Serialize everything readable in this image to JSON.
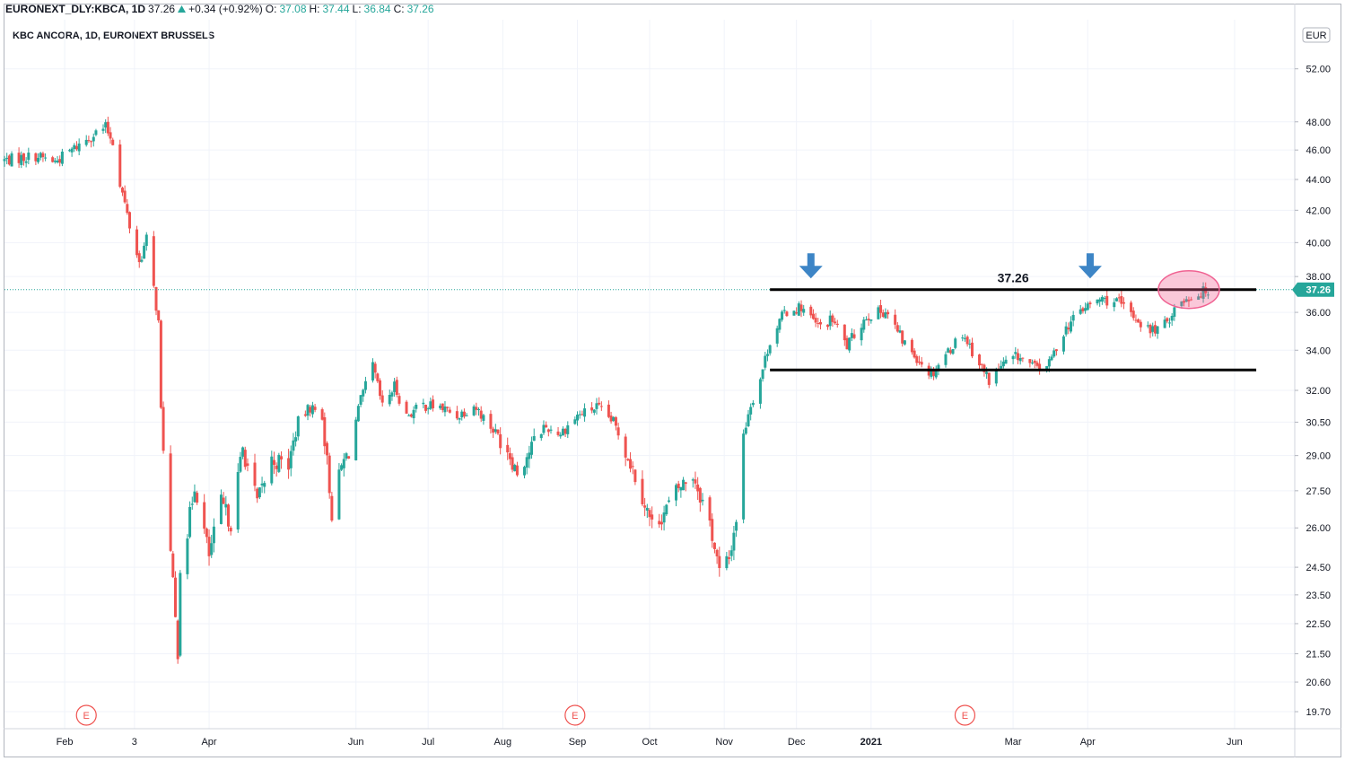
{
  "header": {
    "symbol": "EURONEXT_DLY:KBCA, 1D",
    "last": "37.26",
    "change": "+0.34 (+0.92%)",
    "o_label": "O:",
    "o_value": "37.08",
    "h_label": "H:",
    "h_value": "37.44",
    "l_label": "L:",
    "l_value": "36.84",
    "c_label": "C:",
    "c_value": "37.26",
    "arrow_icon": "triangle-up-icon"
  },
  "chart_title": "KBC ANCORA, 1D, EURONEXT BRUSSELS",
  "currency_badge": "EUR",
  "current_price_label": "37.26",
  "annotation_label": "37.26",
  "event_marker_label": "E",
  "colors": {
    "up": "#26a69a",
    "down": "#ef5350",
    "price_badge": "#26a69a",
    "annotation_arrow": "#3d85c6",
    "highlight_ellipse": "#f06292",
    "dotted_line": "#26a69a"
  },
  "chart_data": {
    "type": "candlestick",
    "y_scale": "log",
    "ylim": [
      19.2,
      56.0
    ],
    "y_ticks": [
      52.0,
      48.0,
      46.0,
      44.0,
      42.0,
      40.0,
      38.0,
      36.0,
      34.0,
      32.0,
      30.5,
      29.0,
      27.5,
      26.0,
      24.5,
      23.5,
      22.5,
      21.5,
      20.6,
      19.7
    ],
    "y_tick_labels": [
      "52.00",
      "48.00",
      "46.00",
      "44.00",
      "42.00",
      "40.00",
      "38.00",
      "36.00",
      "34.00",
      "32.00",
      "30.50",
      "29.00",
      "27.50",
      "26.00",
      "24.50",
      "23.50",
      "22.50",
      "21.50",
      "20.60",
      "19.70"
    ],
    "x_ticks": [
      {
        "label": "Feb",
        "date": "2020-02-01",
        "bold": false
      },
      {
        "label": "3",
        "date": "2020-03-01",
        "bold": false
      },
      {
        "label": "Apr",
        "date": "2020-04-01",
        "bold": false
      },
      {
        "label": "Jun",
        "date": "2020-06-01",
        "bold": false
      },
      {
        "label": "Jul",
        "date": "2020-07-01",
        "bold": false
      },
      {
        "label": "Aug",
        "date": "2020-08-01",
        "bold": false
      },
      {
        "label": "Sep",
        "date": "2020-09-01",
        "bold": false
      },
      {
        "label": "Oct",
        "date": "2020-10-01",
        "bold": false
      },
      {
        "label": "Nov",
        "date": "2020-11-01",
        "bold": false
      },
      {
        "label": "Dec",
        "date": "2020-12-01",
        "bold": false
      },
      {
        "label": "2021",
        "date": "2021-01-01",
        "bold": true
      },
      {
        "label": "Mar",
        "date": "2021-03-01",
        "bold": false
      },
      {
        "label": "Apr",
        "date": "2021-04-01",
        "bold": false
      },
      {
        "label": "Jun",
        "date": "2021-06-01",
        "bold": false
      }
    ],
    "x_start": "2020-01-07",
    "x_end": "2021-06-26",
    "path_points": [
      [
        "2020-01-07",
        45.3
      ],
      [
        "2020-01-20",
        45.6
      ],
      [
        "2020-01-28",
        45.2
      ],
      [
        "2020-02-04",
        46.0
      ],
      [
        "2020-02-12",
        47.0
      ],
      [
        "2020-02-18",
        47.6
      ],
      [
        "2020-02-21",
        46.6
      ],
      [
        "2020-02-24",
        43.8
      ],
      [
        "2020-02-28",
        41.0
      ],
      [
        "2020-03-03",
        38.8
      ],
      [
        "2020-03-06",
        40.2
      ],
      [
        "2020-03-09",
        37.3
      ],
      [
        "2020-03-11",
        35.4
      ],
      [
        "2020-03-12",
        31.0
      ],
      [
        "2020-03-13",
        29.5
      ],
      [
        "2020-03-16",
        25.0
      ],
      [
        "2020-03-18",
        22.6
      ],
      [
        "2020-03-19",
        21.6
      ],
      [
        "2020-03-20",
        24.6
      ],
      [
        "2020-03-23",
        25.8
      ],
      [
        "2020-03-26",
        27.8
      ],
      [
        "2020-04-01",
        24.9
      ],
      [
        "2020-04-06",
        27.0
      ],
      [
        "2020-04-10",
        26.2
      ],
      [
        "2020-04-15",
        29.3
      ],
      [
        "2020-04-21",
        27.0
      ],
      [
        "2020-04-27",
        28.8
      ],
      [
        "2020-05-04",
        28.6
      ],
      [
        "2020-05-08",
        30.5
      ],
      [
        "2020-05-13",
        31.2
      ],
      [
        "2020-05-18",
        30.8
      ],
      [
        "2020-05-22",
        26.6
      ],
      [
        "2020-05-26",
        28.5
      ],
      [
        "2020-05-29",
        29.2
      ],
      [
        "2020-06-03",
        31.5
      ],
      [
        "2020-06-08",
        33.2
      ],
      [
        "2020-06-12",
        31.2
      ],
      [
        "2020-06-17",
        32.2
      ],
      [
        "2020-06-22",
        30.8
      ],
      [
        "2020-06-29",
        31.3
      ],
      [
        "2020-07-06",
        31.2
      ],
      [
        "2020-07-13",
        30.8
      ],
      [
        "2020-07-20",
        31.3
      ],
      [
        "2020-07-27",
        30.3
      ],
      [
        "2020-08-03",
        29.3
      ],
      [
        "2020-08-07",
        28.3
      ],
      [
        "2020-08-12",
        29.2
      ],
      [
        "2020-08-18",
        30.3
      ],
      [
        "2020-08-25",
        30.0
      ],
      [
        "2020-09-01",
        30.8
      ],
      [
        "2020-09-09",
        31.2
      ],
      [
        "2020-09-16",
        30.5
      ],
      [
        "2020-09-22",
        29.0
      ],
      [
        "2020-09-28",
        27.3
      ],
      [
        "2020-10-02",
        26.1
      ],
      [
        "2020-10-07",
        26.6
      ],
      [
        "2020-10-13",
        27.6
      ],
      [
        "2020-10-19",
        28.2
      ],
      [
        "2020-10-26",
        26.2
      ],
      [
        "2020-10-30",
        24.3
      ],
      [
        "2020-11-03",
        24.8
      ],
      [
        "2020-11-06",
        26.4
      ],
      [
        "2020-11-09",
        29.8
      ],
      [
        "2020-11-11",
        31.0
      ],
      [
        "2020-11-16",
        32.6
      ],
      [
        "2020-11-20",
        34.5
      ],
      [
        "2020-11-26",
        36.0
      ],
      [
        "2020-12-03",
        36.3
      ],
      [
        "2020-12-10",
        35.2
      ],
      [
        "2020-12-16",
        35.6
      ],
      [
        "2020-12-22",
        34.2
      ],
      [
        "2020-12-30",
        35.8
      ],
      [
        "2021-01-07",
        36.1
      ],
      [
        "2021-01-14",
        34.5
      ],
      [
        "2021-01-21",
        33.5
      ],
      [
        "2021-01-26",
        32.8
      ],
      [
        "2021-02-01",
        33.8
      ],
      [
        "2021-02-08",
        34.9
      ],
      [
        "2021-02-15",
        33.3
      ],
      [
        "2021-02-19",
        32.5
      ],
      [
        "2021-02-24",
        33.2
      ],
      [
        "2021-03-03",
        33.7
      ],
      [
        "2021-03-10",
        33.1
      ],
      [
        "2021-03-16",
        33.3
      ],
      [
        "2021-03-22",
        35.0
      ],
      [
        "2021-03-29",
        36.1
      ],
      [
        "2021-04-06",
        36.7
      ],
      [
        "2021-04-13",
        36.6
      ],
      [
        "2021-04-20",
        35.8
      ],
      [
        "2021-04-27",
        35.0
      ],
      [
        "2021-05-03",
        35.3
      ],
      [
        "2021-05-07",
        36.2
      ],
      [
        "2021-05-12",
        36.8
      ],
      [
        "2021-05-17",
        37.0
      ],
      [
        "2021-05-21",
        37.26
      ]
    ],
    "horizontal_lines": [
      {
        "price": 37.26,
        "from": "2020-11-20",
        "to": "2021-06-10",
        "color": "#000000"
      },
      {
        "price": 33.0,
        "from": "2020-11-20",
        "to": "2021-06-10",
        "color": "#000000"
      }
    ],
    "arrows": [
      {
        "date": "2020-12-07",
        "price": 38.2
      },
      {
        "date": "2021-04-02",
        "price": 38.2
      }
    ],
    "highlight": {
      "date": "2021-05-13",
      "price": 37.26
    },
    "events": [
      {
        "label": "E",
        "date": "2020-02-10"
      },
      {
        "label": "E",
        "date": "2020-08-31"
      },
      {
        "label": "E",
        "date": "2021-02-09"
      }
    ]
  }
}
